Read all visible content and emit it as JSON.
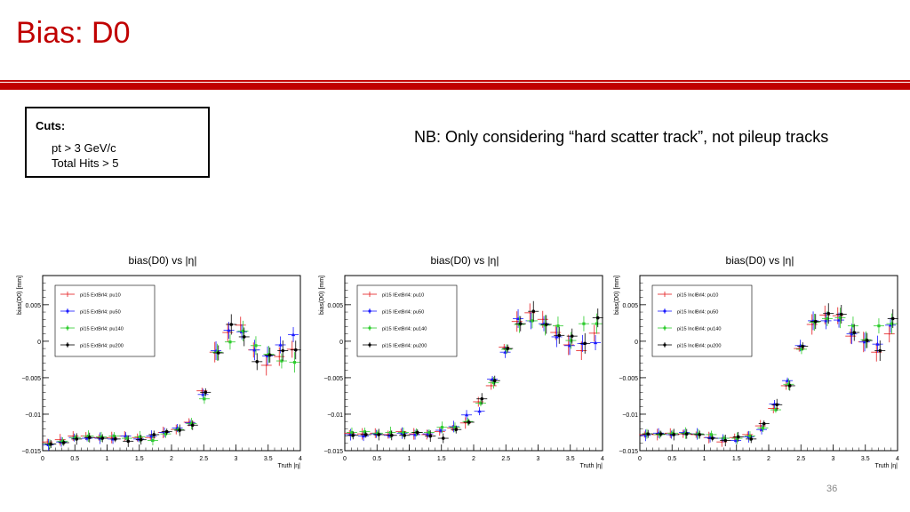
{
  "slide": {
    "title": "Bias: D0",
    "cuts_heading": "Cuts:",
    "cuts": [
      "pt > 3 GeV/c",
      "Total Hits > 5"
    ],
    "note": "NB: Only considering “hard scatter track”, not pileup tracks",
    "page_number": "36",
    "accent_color": "#c00000"
  },
  "chart_data": [
    {
      "type": "scatter",
      "title": "bias(D0) vs |η|",
      "xlabel": "Truth |η|",
      "ylabel": "bias(D0) [mm]",
      "xlim": [
        0,
        4
      ],
      "ylim": [
        -0.015,
        0.009
      ],
      "xticks": [
        "0",
        "0.5",
        "1",
        "1.5",
        "2",
        "2.5",
        "3",
        "3.5",
        "4"
      ],
      "yticks": [
        {
          "v": 0.005,
          "label": "0.005"
        },
        {
          "v": 0,
          "label": "0"
        },
        {
          "v": -0.005,
          "label": "−0.005"
        },
        {
          "v": -0.01,
          "label": "−0.01"
        },
        {
          "v": -0.015,
          "label": "−0.015"
        }
      ],
      "legend_position": "top-left",
      "x": [
        0.1,
        0.3,
        0.5,
        0.7,
        0.9,
        1.1,
        1.3,
        1.5,
        1.7,
        1.9,
        2.1,
        2.3,
        2.5,
        2.7,
        2.9,
        3.1,
        3.3,
        3.5,
        3.7,
        3.9
      ],
      "series": [
        {
          "name": "pi15 ExtBrl4: pu10",
          "color": "#e41a1c",
          "values": [
            -0.0138,
            -0.0135,
            -0.013,
            -0.013,
            -0.0132,
            -0.0132,
            -0.013,
            -0.0132,
            -0.0132,
            -0.0125,
            -0.0121,
            -0.0111,
            -0.0068,
            -0.0015,
            0.0012,
            0.0022,
            -0.0012,
            -0.0033,
            -0.0021,
            -0.0011
          ]
        },
        {
          "name": "pi15 ExtBrl4: pu50",
          "color": "#1a1aff",
          "values": [
            -0.0142,
            -0.0138,
            -0.0132,
            -0.0133,
            -0.0133,
            -0.0134,
            -0.013,
            -0.0134,
            -0.013,
            -0.0125,
            -0.0119,
            -0.0112,
            -0.0073,
            -0.0013,
            0.0015,
            0.0013,
            -0.0012,
            -0.002,
            -0.0005,
            0.0009
          ]
        },
        {
          "name": "pi15 ExtBrl4: pu140",
          "color": "#2ecc2e",
          "values": [
            -0.0141,
            -0.0137,
            -0.0132,
            -0.013,
            -0.0131,
            -0.013,
            -0.0133,
            -0.0131,
            -0.0136,
            -0.0127,
            -0.0121,
            -0.0113,
            -0.0079,
            -0.0015,
            -0.0001,
            0.0014,
            -0.0006,
            -0.0018,
            -0.0027,
            -0.0029
          ]
        },
        {
          "name": "pi15 ExtBrl4: pu200",
          "color": "#000000",
          "values": [
            -0.0141,
            -0.0139,
            -0.0134,
            -0.0132,
            -0.0133,
            -0.0134,
            -0.0137,
            -0.0135,
            -0.0128,
            -0.0124,
            -0.0122,
            -0.0115,
            -0.007,
            -0.0016,
            0.0023,
            0.0006,
            -0.0028,
            -0.0019,
            -0.0013,
            -0.0012
          ]
        }
      ]
    },
    {
      "type": "scatter",
      "title": "bias(D0) vs |η|",
      "xlabel": "Truth |η|",
      "ylabel": "bias(D0) [mm]",
      "xlim": [
        0,
        4
      ],
      "ylim": [
        -0.015,
        0.009
      ],
      "xticks": [
        "0",
        "0.5",
        "1",
        "1.5",
        "2",
        "2.5",
        "3",
        "3.5",
        "4"
      ],
      "yticks": [
        {
          "v": 0.005,
          "label": "0.005"
        },
        {
          "v": 0,
          "label": "0"
        },
        {
          "v": -0.005,
          "label": "−0.005"
        },
        {
          "v": -0.01,
          "label": "−0.01"
        },
        {
          "v": -0.015,
          "label": "−0.015"
        }
      ],
      "legend_position": "top-left",
      "x": [
        0.1,
        0.3,
        0.5,
        0.7,
        0.9,
        1.1,
        1.3,
        1.5,
        1.7,
        1.9,
        2.1,
        2.3,
        2.5,
        2.7,
        2.9,
        3.1,
        3.3,
        3.5,
        3.7,
        3.9
      ],
      "series": [
        {
          "name": "pi15 IExtBrl4: pu10",
          "color": "#e41a1c",
          "values": [
            -0.0126,
            -0.0127,
            -0.0126,
            -0.0128,
            -0.0124,
            -0.0127,
            -0.0128,
            -0.0124,
            -0.0119,
            -0.0112,
            -0.0083,
            -0.0061,
            -0.0008,
            0.0027,
            0.0039,
            0.003,
            0.0012,
            -0.0005,
            -0.0013,
            0.0011
          ]
        },
        {
          "name": "pi15 IExtBrl4: pu50",
          "color": "#1a1aff",
          "values": [
            -0.0128,
            -0.013,
            -0.0127,
            -0.0129,
            -0.0126,
            -0.0128,
            -0.0127,
            -0.0122,
            -0.0117,
            -0.0101,
            -0.0096,
            -0.0052,
            -0.0015,
            0.0031,
            0.0028,
            0.0024,
            0.0006,
            -0.0006,
            -0.0003,
            -0.0002
          ]
        },
        {
          "name": "pi15 IExtBrl4: pu140",
          "color": "#2ecc2e",
          "values": [
            -0.0125,
            -0.0124,
            -0.0126,
            -0.0125,
            -0.0125,
            -0.0125,
            -0.0125,
            -0.0118,
            -0.0118,
            -0.011,
            -0.0085,
            -0.0057,
            -0.0011,
            0.0023,
            0.0028,
            0.0022,
            0.0021,
            0.0001,
            0.0024,
            0.0024
          ]
        },
        {
          "name": "pi15 IExtBrl4: pu200",
          "color": "#000000",
          "values": [
            -0.0129,
            -0.0128,
            -0.0128,
            -0.0129,
            -0.0129,
            -0.0125,
            -0.013,
            -0.0133,
            -0.0121,
            -0.0111,
            -0.0079,
            -0.0054,
            -0.001,
            0.0024,
            0.0041,
            0.0023,
            0.0008,
            0.0007,
            -0.0003,
            0.0032
          ]
        }
      ]
    },
    {
      "type": "scatter",
      "title": "bias(D0) vs |η|",
      "xlabel": "Truth |η|",
      "ylabel": "bias(D0) [mm]",
      "xlim": [
        0,
        4
      ],
      "ylim": [
        -0.015,
        0.009
      ],
      "xticks": [
        "0",
        "0.5",
        "1",
        "1.5",
        "2",
        "2.5",
        "3",
        "3.5",
        "4"
      ],
      "yticks": [
        {
          "v": 0.005,
          "label": "0.005"
        },
        {
          "v": 0,
          "label": "0"
        },
        {
          "v": -0.005,
          "label": "−0.005"
        },
        {
          "v": -0.01,
          "label": "−0.01"
        },
        {
          "v": -0.015,
          "label": "−0.015"
        }
      ],
      "legend_position": "top-left",
      "x": [
        0.1,
        0.3,
        0.5,
        0.7,
        0.9,
        1.1,
        1.3,
        1.5,
        1.7,
        1.9,
        2.1,
        2.3,
        2.5,
        2.7,
        2.9,
        3.1,
        3.3,
        3.5,
        3.7,
        3.9
      ],
      "series": [
        {
          "name": "pi15 InclBrl4: pu10",
          "color": "#e41a1c",
          "values": [
            -0.0128,
            -0.0128,
            -0.0126,
            -0.0127,
            -0.0128,
            -0.0132,
            -0.0138,
            -0.0132,
            -0.0128,
            -0.0116,
            -0.0092,
            -0.0061,
            -0.001,
            0.0023,
            0.0036,
            0.0035,
            0.0007,
            -0.0001,
            -0.0015,
            0.001
          ]
        },
        {
          "name": "pi15 InclBrl4: pu50",
          "color": "#1a1aff",
          "values": [
            -0.0129,
            -0.0126,
            -0.0128,
            -0.0125,
            -0.0127,
            -0.0132,
            -0.0133,
            -0.0136,
            -0.0131,
            -0.0121,
            -0.0086,
            -0.0054,
            -0.0006,
            0.0028,
            0.0028,
            0.0029,
            0.001,
            -0.0001,
            -0.0004,
            0.0022
          ]
        },
        {
          "name": "pi15 InclBrl4: pu140",
          "color": "#2ecc2e",
          "values": [
            -0.0127,
            -0.0128,
            -0.0126,
            -0.0126,
            -0.0127,
            -0.0128,
            -0.0133,
            -0.0133,
            -0.013,
            -0.0119,
            -0.0094,
            -0.0059,
            -0.0011,
            0.0026,
            0.0031,
            0.0032,
            0.0021,
            0.0002,
            0.0021,
            0.0024
          ]
        },
        {
          "name": "pi15 InclBrl4: pu200",
          "color": "#000000",
          "values": [
            -0.0127,
            -0.0127,
            -0.0128,
            -0.0127,
            -0.0128,
            -0.0133,
            -0.0136,
            -0.0131,
            -0.0134,
            -0.0113,
            -0.0087,
            -0.0061,
            -0.0007,
            0.0027,
            0.0038,
            0.0037,
            0.0012,
            0.0001,
            -0.0013,
            0.0031
          ]
        }
      ]
    }
  ]
}
